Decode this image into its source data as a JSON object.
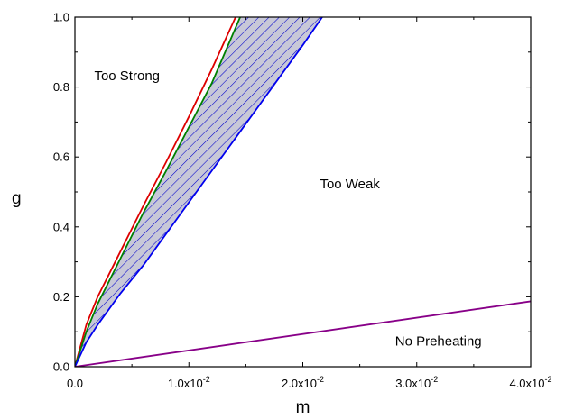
{
  "chart_data": {
    "type": "line",
    "title": "",
    "xlabel": "m",
    "ylabel": "g",
    "xlim": [
      0,
      0.04
    ],
    "ylim": [
      0,
      1.0
    ],
    "grid": false,
    "x_ticks": [
      {
        "value": 0,
        "label": "0.0",
        "sup": ""
      },
      {
        "value": 0.01,
        "label": "1.0x10",
        "sup": "-2"
      },
      {
        "value": 0.02,
        "label": "2.0x10",
        "sup": "-2"
      },
      {
        "value": 0.03,
        "label": "3.0x10",
        "sup": "-2"
      },
      {
        "value": 0.04,
        "label": "4.0x10",
        "sup": "-2"
      }
    ],
    "y_ticks": [
      {
        "value": 0,
        "label": "0.0"
      },
      {
        "value": 0.2,
        "label": "0.2"
      },
      {
        "value": 0.4,
        "label": "0.4"
      },
      {
        "value": 0.6,
        "label": "0.6"
      },
      {
        "value": 0.8,
        "label": "0.8"
      },
      {
        "value": 1.0,
        "label": "1.0"
      }
    ],
    "series": [
      {
        "color": "#dd0000",
        "x": [
          0,
          0.001,
          0.002,
          0.004,
          0.006,
          0.008,
          0.01,
          0.012,
          0.0141
        ],
        "y": [
          0,
          0.12,
          0.2,
          0.33,
          0.46,
          0.585,
          0.715,
          0.85,
          1.0
        ]
      },
      {
        "color": "#008000",
        "x": [
          0,
          0.001,
          0.002,
          0.004,
          0.006,
          0.008,
          0.01,
          0.012,
          0.0145
        ],
        "y": [
          0,
          0.1,
          0.18,
          0.31,
          0.44,
          0.56,
          0.685,
          0.81,
          1.0
        ]
      },
      {
        "color": "#0000ee",
        "x": [
          0,
          0.001,
          0.002,
          0.004,
          0.006,
          0.008,
          0.01,
          0.012,
          0.014,
          0.016,
          0.018,
          0.02,
          0.0217
        ],
        "y": [
          0,
          0.07,
          0.12,
          0.21,
          0.29,
          0.38,
          0.47,
          0.56,
          0.65,
          0.74,
          0.83,
          0.92,
          1.0
        ]
      },
      {
        "color": "#880088",
        "x": [
          0,
          0.04
        ],
        "y": [
          0,
          0.187
        ]
      }
    ],
    "shaded_region": {
      "between_series": [
        1,
        2
      ],
      "fill": "#c8c8d8",
      "hatch": "#0000cc"
    },
    "annotations": [
      {
        "text": "Too Strong",
        "x": 0.0017,
        "y": 0.82
      },
      {
        "text": "Too Weak",
        "x": 0.0215,
        "y": 0.51
      },
      {
        "text": "No Preheating",
        "x": 0.0281,
        "y": 0.06
      }
    ]
  }
}
